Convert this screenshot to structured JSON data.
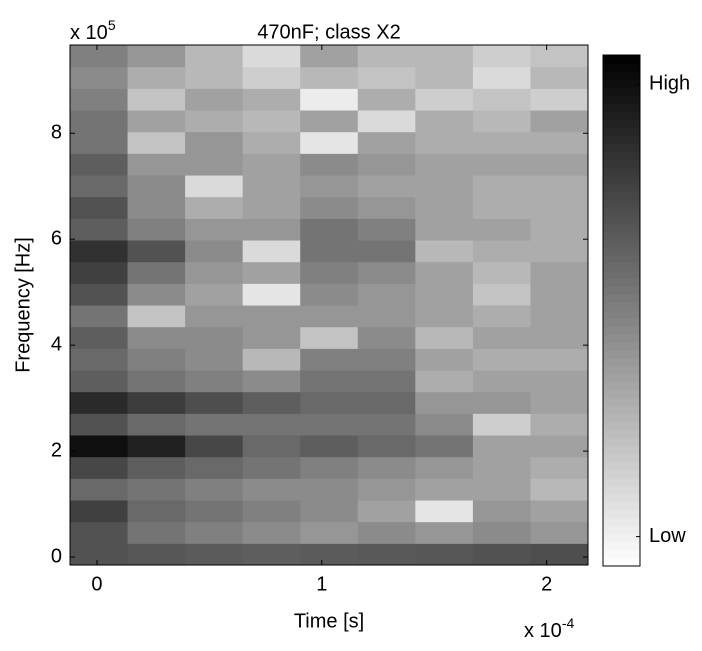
{
  "chart_data": {
    "type": "heatmap",
    "title": "470nF; class X2",
    "xlabel": "Time [s]",
    "ylabel": "Frequency  [Hz]",
    "x_multiplier": "x 10",
    "x_multiplier_exponent": "-4",
    "y_multiplier": "x 10",
    "y_multiplier_exponent": "5",
    "xlim": [
      -0.12,
      2.184
    ],
    "xticks": [
      0,
      1,
      2
    ],
    "ylim": [
      -0.15,
      9.666
    ],
    "yticks": [
      0,
      2,
      4,
      6,
      8
    ],
    "clim": [
      -0.065,
      1.065
    ],
    "colorbar_ticks": [
      {
        "value": 1,
        "label": "High"
      },
      {
        "value": 0,
        "label": "Low"
      }
    ],
    "colormap": "gray-reversed",
    "x": [
      0.008,
      0.264,
      0.52,
      0.776,
      1.032,
      1.288,
      1.544,
      1.8,
      2.056
    ],
    "y": [
      0.054,
      0.463,
      0.872,
      1.281,
      1.69,
      2.099,
      2.508,
      2.917,
      3.326,
      3.735,
      4.144,
      4.553,
      4.962,
      5.371,
      5.78,
      6.189,
      6.598,
      7.007,
      7.416,
      7.825,
      8.234,
      8.643,
      9.052,
      9.461
    ],
    "z": [
      [
        0.7,
        0.68,
        0.66,
        0.65,
        0.66,
        0.67,
        0.68,
        0.7,
        0.72
      ],
      [
        0.7,
        0.55,
        0.5,
        0.45,
        0.4,
        0.45,
        0.4,
        0.45,
        0.4
      ],
      [
        0.78,
        0.6,
        0.55,
        0.5,
        0.45,
        0.35,
        0.05,
        0.4,
        0.35
      ],
      [
        0.6,
        0.55,
        0.5,
        0.45,
        0.45,
        0.4,
        0.35,
        0.35,
        0.25
      ],
      [
        0.75,
        0.65,
        0.6,
        0.55,
        0.5,
        0.45,
        0.4,
        0.35,
        0.3
      ],
      [
        1.0,
        0.92,
        0.75,
        0.6,
        0.65,
        0.6,
        0.55,
        0.35,
        0.35
      ],
      [
        0.7,
        0.6,
        0.55,
        0.55,
        0.55,
        0.55,
        0.45,
        0.15,
        0.3
      ],
      [
        0.88,
        0.8,
        0.72,
        0.65,
        0.6,
        0.6,
        0.4,
        0.4,
        0.35
      ],
      [
        0.65,
        0.55,
        0.5,
        0.45,
        0.55,
        0.55,
        0.3,
        0.35,
        0.35
      ],
      [
        0.6,
        0.5,
        0.45,
        0.25,
        0.5,
        0.5,
        0.35,
        0.3,
        0.3
      ],
      [
        0.65,
        0.45,
        0.45,
        0.4,
        0.2,
        0.45,
        0.25,
        0.35,
        0.35
      ],
      [
        0.55,
        0.2,
        0.4,
        0.4,
        0.4,
        0.4,
        0.35,
        0.3,
        0.35
      ],
      [
        0.7,
        0.45,
        0.35,
        0.05,
        0.45,
        0.4,
        0.35,
        0.2,
        0.35
      ],
      [
        0.78,
        0.55,
        0.4,
        0.35,
        0.5,
        0.45,
        0.35,
        0.25,
        0.35
      ],
      [
        0.85,
        0.7,
        0.45,
        0.1,
        0.55,
        0.55,
        0.25,
        0.3,
        0.3
      ],
      [
        0.65,
        0.5,
        0.4,
        0.4,
        0.55,
        0.5,
        0.35,
        0.35,
        0.3
      ],
      [
        0.7,
        0.45,
        0.3,
        0.35,
        0.45,
        0.4,
        0.35,
        0.3,
        0.3
      ],
      [
        0.6,
        0.45,
        0.1,
        0.35,
        0.4,
        0.35,
        0.35,
        0.3,
        0.3
      ],
      [
        0.65,
        0.4,
        0.4,
        0.35,
        0.45,
        0.4,
        0.35,
        0.35,
        0.35
      ],
      [
        0.55,
        0.2,
        0.4,
        0.3,
        0.05,
        0.35,
        0.3,
        0.3,
        0.3
      ],
      [
        0.55,
        0.35,
        0.3,
        0.25,
        0.35,
        0.1,
        0.3,
        0.25,
        0.35
      ],
      [
        0.5,
        0.2,
        0.35,
        0.3,
        0.02,
        0.3,
        0.15,
        0.2,
        0.15
      ],
      [
        0.45,
        0.3,
        0.25,
        0.15,
        0.25,
        0.2,
        0.25,
        0.1,
        0.25
      ],
      [
        0.5,
        0.4,
        0.25,
        0.1,
        0.35,
        0.25,
        0.25,
        0.15,
        0.2
      ]
    ]
  }
}
